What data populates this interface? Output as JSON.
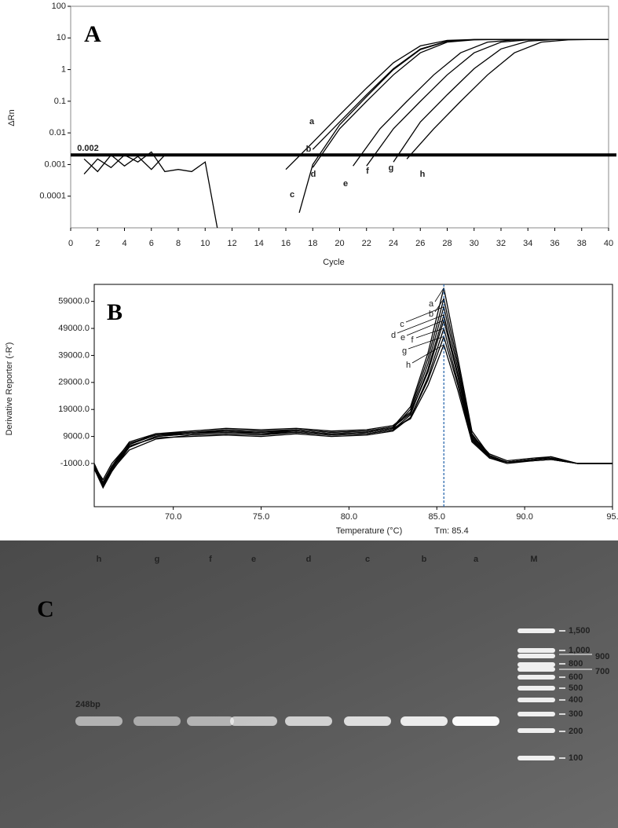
{
  "chart_data": [
    {
      "type": "line",
      "label": "A",
      "x_label": "Cycle",
      "y_label": "ΔRn",
      "yscale": "log",
      "xlim": [
        0,
        40
      ],
      "xticks": [
        0,
        2,
        4,
        6,
        8,
        10,
        12,
        14,
        16,
        18,
        20,
        22,
        24,
        26,
        28,
        30,
        32,
        34,
        36,
        38,
        40
      ],
      "ylim": [
        1e-05,
        100
      ],
      "yticks": [
        100,
        10,
        1,
        0.1,
        0.01,
        0.001,
        0.0001
      ],
      "threshold": 0.002,
      "threshold_color": "#c00000",
      "color": "#000000",
      "series": [
        {
          "name": "a",
          "x": [
            16,
            18,
            20,
            22,
            24,
            26,
            28,
            30,
            32,
            34,
            36,
            38,
            40
          ],
          "values": [
            0.0007,
            0.005,
            0.037,
            0.26,
            1.64,
            5.6,
            8.38,
            8.9,
            8.96,
            9,
            9,
            9,
            9
          ]
        },
        {
          "name": "b",
          "x": [
            18,
            20,
            22,
            24,
            26,
            28,
            30,
            32,
            34,
            36,
            38,
            40
          ],
          "values": [
            0.003,
            0.022,
            0.16,
            1.07,
            4.5,
            7.92,
            8.84,
            9,
            9,
            9,
            9,
            9
          ]
        },
        {
          "name": "c",
          "x": [
            17,
            18,
            20,
            22,
            24,
            26,
            28,
            30,
            32,
            34,
            36,
            38,
            40
          ],
          "values": [
            3e-05,
            0.001,
            0.018,
            0.14,
            1,
            4.3,
            7.8,
            8.8,
            9,
            9,
            9,
            9,
            9
          ]
        },
        {
          "name": "d",
          "x": [
            18,
            20,
            22,
            24,
            26,
            28,
            30,
            32,
            34,
            36,
            38,
            40
          ],
          "values": [
            0.0008,
            0.0135,
            0.099,
            0.68,
            3.4,
            7.36,
            8.73,
            8.96,
            9,
            9,
            9,
            9
          ]
        },
        {
          "name": "e",
          "x": [
            21,
            23,
            25,
            27,
            29,
            31,
            33,
            35,
            37,
            39,
            40
          ],
          "values": [
            0.0009,
            0.0135,
            0.099,
            0.68,
            3.4,
            7.36,
            8.73,
            8.96,
            9,
            9,
            9
          ]
        },
        {
          "name": "f",
          "x": [
            22,
            24,
            26,
            28,
            30,
            32,
            34,
            36,
            38,
            40
          ],
          "values": [
            0.0009,
            0.0135,
            0.099,
            0.68,
            3.4,
            7.36,
            8.73,
            8.96,
            9,
            9
          ]
        },
        {
          "name": "g",
          "x": [
            24,
            26,
            28,
            30,
            32,
            34,
            36,
            38,
            40
          ],
          "values": [
            0.0012,
            0.022,
            0.16,
            1.07,
            4.5,
            7.92,
            8.84,
            9,
            9
          ]
        },
        {
          "name": "h",
          "x": [
            25,
            27,
            29,
            31,
            33,
            35,
            37,
            39,
            40
          ],
          "values": [
            0.0015,
            0.0135,
            0.099,
            0.68,
            3.4,
            7.36,
            8.73,
            8.96,
            9
          ]
        },
        {
          "x": [
            1,
            2,
            3,
            4,
            5,
            6,
            7,
            8,
            9,
            10,
            10.9
          ],
          "values": [
            0.0005,
            0.0015,
            0.0008,
            0.002,
            0.0012,
            0.0025,
            0.0006,
            0.0007,
            0.0006,
            0.0012,
            1e-05
          ]
        },
        {
          "x": [
            1,
            2,
            3,
            4,
            5,
            6,
            7
          ],
          "values": [
            0.0015,
            0.0006,
            0.002,
            0.0009,
            0.0018,
            0.0007,
            0.002
          ]
        }
      ]
    },
    {
      "type": "line",
      "label": "B",
      "x_label": "Temperature (°C)",
      "y_label": "Derivative Reporter (-R')",
      "xlim": [
        65.5,
        95
      ],
      "xticks": [
        {
          "value": 70,
          "label": "70.0"
        },
        {
          "value": 75,
          "label": "75.0"
        },
        {
          "value": 80,
          "label": "80.0"
        },
        {
          "value": 85,
          "label": "85.0"
        },
        {
          "value": 90,
          "label": "90.0"
        },
        {
          "value": 95,
          "label": "95."
        }
      ],
      "ylim": [
        -17000,
        65300
      ],
      "yticks": [
        {
          "value": -1000,
          "label": "-1000.0"
        },
        {
          "value": 9000,
          "label": "9000.0"
        },
        {
          "value": 19000,
          "label": "19000.0"
        },
        {
          "value": 29000,
          "label": "29000.0"
        },
        {
          "value": 39000,
          "label": "39000.0"
        },
        {
          "value": 49000,
          "label": "49000.0"
        },
        {
          "value": 59000,
          "label": "59000.0"
        }
      ],
      "marker": {
        "value": 85.4,
        "label": "Tm: 85.4"
      },
      "marker_color": "#1f5fa8",
      "color": "#000000",
      "x": [
        65.5,
        66,
        66.5,
        67.5,
        69,
        71,
        73,
        75,
        77,
        79,
        81,
        82.5,
        83.5,
        84.5,
        85.4,
        86.2,
        87,
        88,
        89,
        90.5,
        91.5,
        93,
        95
      ],
      "series": [
        {
          "name": "a",
          "values": [
            -2000,
            -9000,
            -3000,
            6000,
            9500,
            10500,
            11500,
            11000,
            11500,
            10500,
            11000,
            12500,
            20000,
            40000,
            64000,
            38000,
            11000,
            2000,
            -500,
            500,
            1500,
            -1000,
            -1000
          ]
        },
        {
          "name": "b",
          "values": [
            -3000,
            -10000,
            -4000,
            5000,
            9000,
            10000,
            11000,
            10000,
            11000,
            10000,
            10500,
            12000,
            19000,
            38000,
            60000,
            36000,
            10000,
            1500,
            -500,
            500,
            1000,
            -1000,
            -1000
          ]
        },
        {
          "name": "c",
          "values": [
            -1000,
            -8000,
            -2000,
            7000,
            10000,
            11000,
            12000,
            11500,
            12000,
            11000,
            11500,
            13000,
            18000,
            36000,
            57000,
            34000,
            9500,
            2500,
            0,
            1000,
            1500,
            -1000,
            -1000
          ]
        },
        {
          "name": "d",
          "values": [
            -2500,
            -9500,
            -3500,
            4000,
            8000,
            9500,
            10000,
            9500,
            10500,
            9500,
            10000,
            11500,
            17000,
            34000,
            54000,
            32000,
            9000,
            2000,
            -500,
            0,
            500,
            -1000,
            -1000
          ]
        },
        {
          "name": "e",
          "values": [
            -2000,
            -7000,
            -1000,
            6500,
            9500,
            10000,
            11000,
            10500,
            11500,
            10500,
            11000,
            12500,
            17500,
            33000,
            52000,
            31000,
            8500,
            1500,
            -500,
            500,
            1000,
            -1000,
            -1000
          ]
        },
        {
          "name": "f",
          "values": [
            -1500,
            -8500,
            -2500,
            5500,
            8500,
            9000,
            9500,
            9000,
            10000,
            9000,
            9500,
            11000,
            16000,
            31000,
            49000,
            29000,
            8000,
            1000,
            -1000,
            0,
            500,
            -1000,
            -1000
          ]
        },
        {
          "name": "g",
          "values": [
            -3000,
            -9000,
            -3000,
            5000,
            9000,
            10000,
            10500,
            10000,
            10500,
            9500,
            10000,
            11500,
            16000,
            30000,
            46000,
            28000,
            7500,
            1500,
            -500,
            500,
            1000,
            -1000,
            -1000
          ]
        },
        {
          "name": "h",
          "values": [
            -2000,
            -8000,
            -2000,
            6000,
            10000,
            10500,
            11000,
            10500,
            11000,
            10000,
            10500,
            12000,
            15500,
            28000,
            43000,
            26000,
            7000,
            1000,
            -500,
            0,
            500,
            -1000,
            -1000
          ]
        }
      ]
    }
  ],
  "gel": {
    "label": "C",
    "lanes": [
      "h",
      "g",
      "f",
      "e",
      "d",
      "c",
      "b",
      "a",
      "M"
    ],
    "band_label": "248bp",
    "ladder": [
      "1,500",
      "1,000",
      "900",
      "800",
      "700",
      "600",
      "500",
      "400",
      "300",
      "200",
      "100"
    ]
  }
}
